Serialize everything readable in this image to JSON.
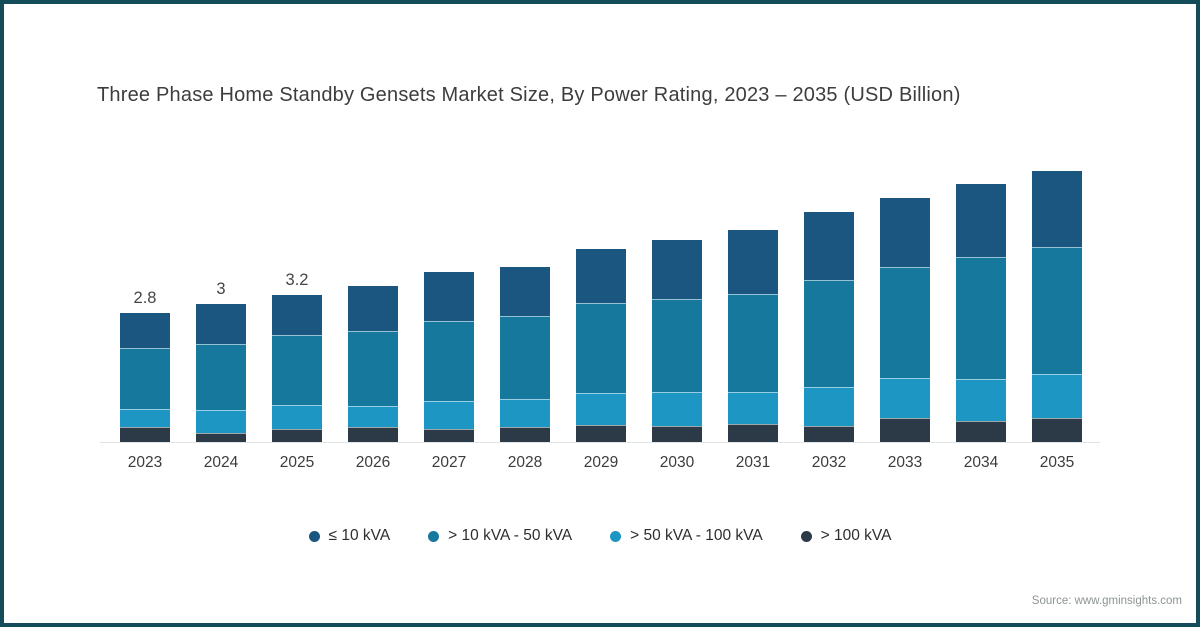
{
  "title": "Three Phase Home Standby Gensets Market Size, By Power Rating, 2023 – 2035 (USD Billion)",
  "source": "Source: www.gminsights.com",
  "frame_border_color": "#144d59",
  "chart_data": {
    "type": "bar",
    "stacked": true,
    "title": "Three Phase Home Standby Gensets Market Size, By Power Rating, 2023 – 2035 (USD Billion)",
    "unit": "USD Billion",
    "categories": [
      "2023",
      "2024",
      "2025",
      "2026",
      "2027",
      "2028",
      "2029",
      "2030",
      "2031",
      "2032",
      "2033",
      "2034",
      "2035"
    ],
    "series": [
      {
        "name": "≤ 10 kVA",
        "color": "#1a5680",
        "values": [
          0.76,
          0.86,
          0.87,
          0.98,
          1.06,
          1.06,
          1.18,
          1.28,
          1.38,
          1.48,
          1.5,
          1.58,
          1.66
        ]
      },
      {
        "name": "> 10 kVA - 50 kVA",
        "color": "#17789e",
        "values": [
          1.32,
          1.45,
          1.53,
          1.63,
          1.74,
          1.8,
          1.95,
          2.03,
          2.13,
          2.32,
          2.41,
          2.64,
          2.77
        ]
      },
      {
        "name": "> 50 kVA - 100 kVA",
        "color": "#1e96c3",
        "values": [
          0.39,
          0.49,
          0.52,
          0.46,
          0.62,
          0.61,
          0.7,
          0.74,
          0.7,
          0.85,
          0.86,
          0.92,
          0.95
        ]
      },
      {
        "name": "> 100 kVA",
        "color": "#2c3a47",
        "values": [
          0.33,
          0.2,
          0.28,
          0.33,
          0.28,
          0.33,
          0.37,
          0.35,
          0.39,
          0.35,
          0.53,
          0.46,
          0.52
        ]
      }
    ],
    "totals_shown": [
      "2.8",
      "3",
      "3.2",
      "",
      "",
      "",
      "",
      "",
      "",
      "",
      "",
      "",
      ""
    ],
    "totals": [
      2.8,
      3.0,
      3.2,
      3.4,
      3.7,
      3.8,
      4.2,
      4.4,
      4.6,
      5.0,
      5.3,
      5.6,
      5.9
    ],
    "ylim": [
      0,
      6.3
    ],
    "grid": false,
    "legend_position": "bottom",
    "axis_labels_visible": false
  }
}
